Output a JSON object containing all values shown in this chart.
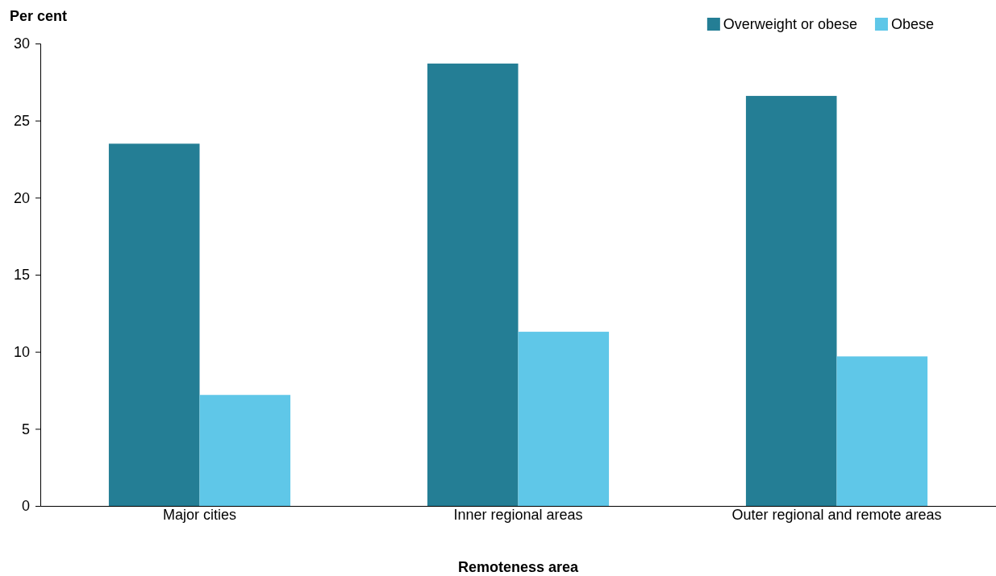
{
  "chart_data": {
    "type": "bar",
    "ylabel": "Per cent",
    "xlabel": "Remoteness area",
    "categories": [
      "Major cities",
      "Inner regional areas",
      "Outer regional and remote areas"
    ],
    "series": [
      {
        "name": "Overweight or obese",
        "color": "#247e95",
        "values": [
          23.5,
          28.7,
          26.6
        ]
      },
      {
        "name": "Obese",
        "color": "#5fc7e8",
        "values": [
          7.2,
          11.3,
          9.7
        ]
      }
    ],
    "ylim": [
      0,
      30
    ],
    "yticks": [
      0,
      5,
      10,
      15,
      20,
      25,
      30
    ],
    "legend": "top right",
    "grid": false
  }
}
